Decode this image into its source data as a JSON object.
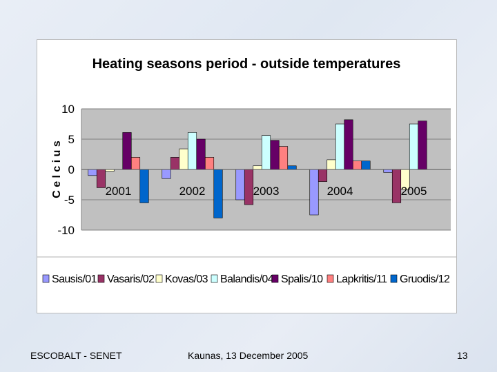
{
  "colors": {
    "plot_bg": "#c0c0c0",
    "grid": "#808080",
    "series": [
      "#9999ff",
      "#993366",
      "#ffffcc",
      "#ccffff",
      "#660066",
      "#ff8080",
      "#0066cc"
    ]
  },
  "chart_data": {
    "type": "bar",
    "title": "Heating seasons period  - outside temperatures",
    "xlabel": "",
    "ylabel": "C e l c i u s",
    "ylim": [
      -10,
      10
    ],
    "yticks": [
      10,
      5,
      0,
      -5,
      -10
    ],
    "grid": true,
    "legend_position": "bottom",
    "categories": [
      "2001",
      "2002",
      "2003",
      "2004",
      "2005"
    ],
    "series": [
      {
        "name": "Sausis/01",
        "values": [
          -1,
          -1.5,
          -5,
          -7.5,
          -0.5
        ]
      },
      {
        "name": "Vasaris/02",
        "values": [
          -3,
          2,
          -5.8,
          -2,
          -5.5
        ]
      },
      {
        "name": "Kovas/03",
        "values": [
          -0.3,
          3.4,
          0.6,
          1.6,
          -3.3
        ]
      },
      {
        "name": "Balandis/04",
        "values": [
          0,
          6.1,
          5.6,
          7.5,
          7.5
        ]
      },
      {
        "name": "Spalis/10",
        "values": [
          6.1,
          5,
          4.8,
          8.2,
          8
        ]
      },
      {
        "name": "Lapkritis/11",
        "values": [
          2,
          2,
          3.8,
          1.4,
          0
        ]
      },
      {
        "name": "Gruodis/12",
        "values": [
          -5.5,
          -8,
          0.6,
          1.4,
          0
        ]
      }
    ]
  },
  "footer": {
    "left": "ESCOBALT - SENET",
    "center": "Kaunas, 13 December 2005",
    "right": "13"
  }
}
